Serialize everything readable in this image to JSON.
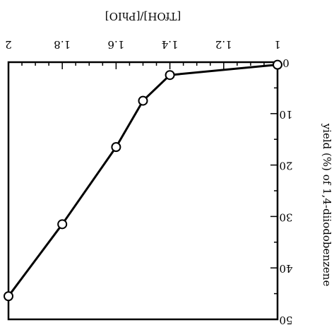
{
  "chart_data": {
    "type": "line",
    "orientation": "rotated-180",
    "xlabel": "[TfOH]/[PhIO]",
    "ylabel": "yield (%) of 1,4-diiodobenzene",
    "xlim": [
      1,
      2
    ],
    "ylim": [
      0,
      50
    ],
    "xticks": [
      "1",
      "1.2",
      "1.4",
      "1.6",
      "1.8",
      "2"
    ],
    "yticks": [
      "0",
      "10",
      "20",
      "30",
      "40",
      "50"
    ],
    "grid": false,
    "series": [
      {
        "marker": "circle",
        "x": [
          1.0,
          1.4,
          1.5,
          1.6,
          1.8,
          2.0
        ],
        "y": [
          0.5,
          2.5,
          7.5,
          16.5,
          31.5,
          45.5
        ]
      }
    ]
  }
}
